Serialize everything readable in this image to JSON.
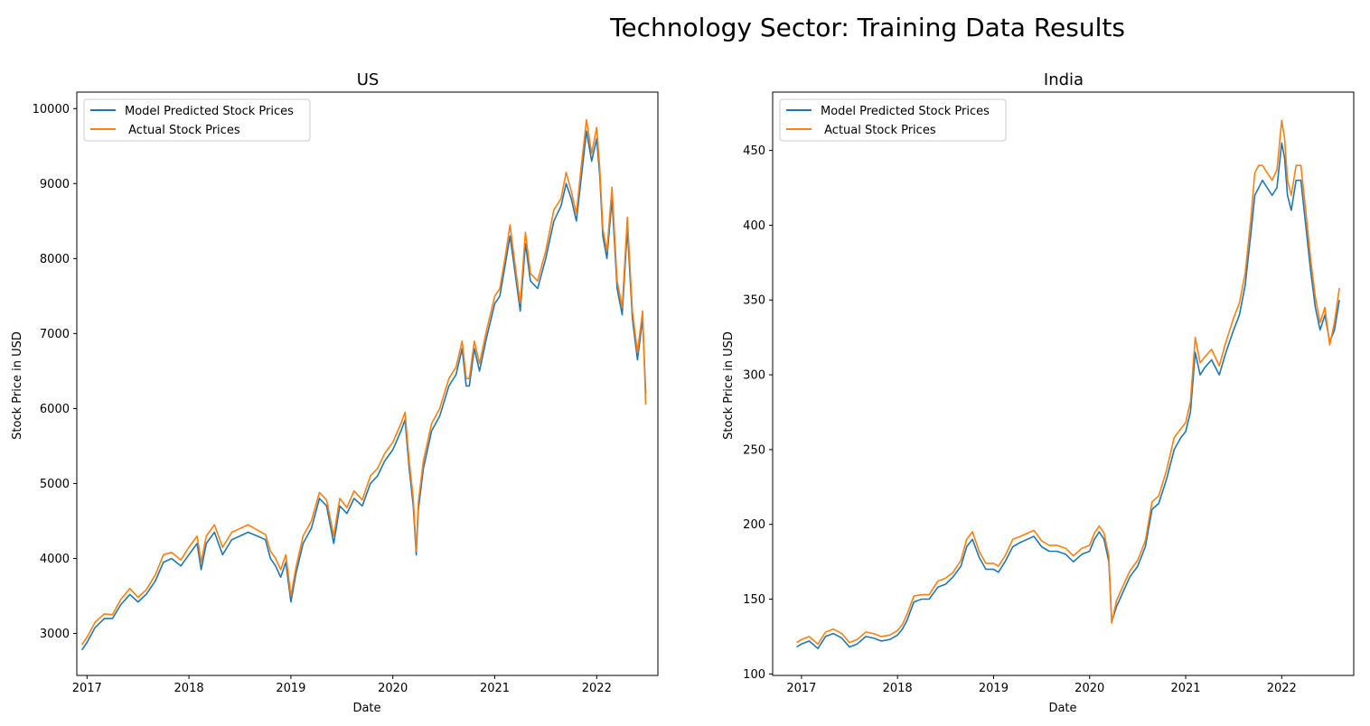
{
  "figure": {
    "suptitle": "Technology Sector: Training Data Results"
  },
  "colors": {
    "predicted": "#1f77b4",
    "actual": "#ff7f0e"
  },
  "chart_data": [
    {
      "type": "line",
      "title": "US",
      "xlabel": "Date",
      "ylabel": "Stock Price in USD",
      "xticks": [
        "2017",
        "2018",
        "2019",
        "2020",
        "2021",
        "2022"
      ],
      "yticks": [
        3000,
        4000,
        5000,
        6000,
        7000,
        8000,
        9000,
        10000
      ],
      "xlim": [
        2016.9,
        2022.6
      ],
      "ylim": [
        2440,
        10220
      ],
      "legend": {
        "position": "upper-left",
        "entries": [
          "Model Predicted Stock Prices",
          " Actual Stock Prices"
        ]
      },
      "series": [
        {
          "name": "Model Predicted Stock Prices",
          "x": [
            2016.95,
            2017.0,
            2017.08,
            2017.17,
            2017.25,
            2017.33,
            2017.42,
            2017.5,
            2017.58,
            2017.67,
            2017.75,
            2017.83,
            2017.92,
            2018.0,
            2018.08,
            2018.12,
            2018.17,
            2018.25,
            2018.33,
            2018.42,
            2018.5,
            2018.58,
            2018.67,
            2018.75,
            2018.8,
            2018.85,
            2018.9,
            2018.95,
            2019.0,
            2019.05,
            2019.12,
            2019.2,
            2019.28,
            2019.35,
            2019.42,
            2019.48,
            2019.55,
            2019.62,
            2019.7,
            2019.78,
            2019.85,
            2019.92,
            2020.0,
            2020.08,
            2020.12,
            2020.16,
            2020.2,
            2020.23,
            2020.25,
            2020.3,
            2020.38,
            2020.46,
            2020.55,
            2020.62,
            2020.68,
            2020.72,
            2020.75,
            2020.8,
            2020.85,
            2020.92,
            2021.0,
            2021.05,
            2021.1,
            2021.15,
            2021.2,
            2021.25,
            2021.3,
            2021.35,
            2021.42,
            2021.5,
            2021.58,
            2021.65,
            2021.7,
            2021.75,
            2021.8,
            2021.85,
            2021.9,
            2021.95,
            2022.0,
            2022.03,
            2022.06,
            2022.1,
            2022.15,
            2022.2,
            2022.25,
            2022.3,
            2022.35,
            2022.4,
            2022.45,
            2022.48
          ],
          "y": [
            2780,
            2880,
            3080,
            3200,
            3200,
            3380,
            3520,
            3420,
            3520,
            3700,
            3950,
            4000,
            3900,
            4050,
            4200,
            3850,
            4200,
            4350,
            4050,
            4250,
            4300,
            4350,
            4300,
            4250,
            4000,
            3900,
            3750,
            3950,
            3420,
            3800,
            4200,
            4400,
            4800,
            4700,
            4200,
            4700,
            4600,
            4800,
            4700,
            5000,
            5100,
            5300,
            5450,
            5700,
            5850,
            5200,
            4700,
            4050,
            4650,
            5200,
            5700,
            5900,
            6300,
            6450,
            6800,
            6300,
            6300,
            6800,
            6500,
            6950,
            7400,
            7500,
            7900,
            8300,
            7800,
            7300,
            8200,
            7700,
            7600,
            8000,
            8500,
            8700,
            9000,
            8800,
            8500,
            9100,
            9700,
            9300,
            9600,
            9100,
            8300,
            8000,
            8800,
            7600,
            7250,
            8400,
            7200,
            6650,
            7200,
            6200
          ]
        },
        {
          "name": " Actual Stock Prices",
          "x": [
            2016.95,
            2017.0,
            2017.08,
            2017.17,
            2017.25,
            2017.33,
            2017.42,
            2017.5,
            2017.58,
            2017.67,
            2017.75,
            2017.83,
            2017.92,
            2018.0,
            2018.08,
            2018.12,
            2018.17,
            2018.25,
            2018.33,
            2018.42,
            2018.5,
            2018.58,
            2018.67,
            2018.75,
            2018.8,
            2018.85,
            2018.9,
            2018.95,
            2019.0,
            2019.05,
            2019.12,
            2019.2,
            2019.28,
            2019.35,
            2019.42,
            2019.48,
            2019.55,
            2019.62,
            2019.7,
            2019.78,
            2019.85,
            2019.92,
            2020.0,
            2020.08,
            2020.12,
            2020.16,
            2020.2,
            2020.23,
            2020.25,
            2020.3,
            2020.38,
            2020.46,
            2020.55,
            2020.62,
            2020.68,
            2020.72,
            2020.75,
            2020.8,
            2020.85,
            2020.92,
            2021.0,
            2021.05,
            2021.1,
            2021.15,
            2021.2,
            2021.25,
            2021.3,
            2021.35,
            2021.42,
            2021.5,
            2021.58,
            2021.65,
            2021.7,
            2021.75,
            2021.8,
            2021.85,
            2021.9,
            2021.95,
            2022.0,
            2022.03,
            2022.06,
            2022.1,
            2022.15,
            2022.2,
            2022.25,
            2022.3,
            2022.35,
            2022.4,
            2022.45,
            2022.48
          ],
          "y": [
            2850,
            2950,
            3150,
            3260,
            3250,
            3450,
            3600,
            3480,
            3580,
            3780,
            4050,
            4080,
            3980,
            4150,
            4300,
            3950,
            4300,
            4450,
            4150,
            4350,
            4400,
            4450,
            4380,
            4320,
            4100,
            4000,
            3850,
            4050,
            3500,
            3880,
            4300,
            4500,
            4880,
            4780,
            4300,
            4800,
            4680,
            4900,
            4780,
            5100,
            5200,
            5400,
            5550,
            5800,
            5950,
            5300,
            4800,
            4100,
            4750,
            5300,
            5800,
            6000,
            6400,
            6550,
            6900,
            6400,
            6400,
            6900,
            6600,
            7050,
            7500,
            7600,
            8000,
            8450,
            7900,
            7400,
            8350,
            7800,
            7700,
            8100,
            8650,
            8800,
            9150,
            8900,
            8600,
            9250,
            9850,
            9400,
            9750,
            9200,
            8400,
            8100,
            8950,
            7700,
            7350,
            8550,
            7300,
            6750,
            7300,
            6050
          ]
        }
      ]
    },
    {
      "type": "line",
      "title": "India",
      "xlabel": "Date",
      "ylabel": "Stock Price in USD",
      "xticks": [
        "2017",
        "2018",
        "2019",
        "2020",
        "2021",
        "2022"
      ],
      "yticks": [
        100,
        150,
        200,
        250,
        300,
        350,
        400,
        450
      ],
      "xlim": [
        2016.7,
        2022.75
      ],
      "ylim": [
        99,
        489
      ],
      "legend": {
        "position": "upper-left",
        "entries": [
          "Model Predicted Stock Prices",
          " Actual Stock Prices"
        ]
      },
      "series": [
        {
          "name": "Model Predicted Stock Prices",
          "x": [
            2016.95,
            2017.0,
            2017.08,
            2017.17,
            2017.25,
            2017.33,
            2017.42,
            2017.5,
            2017.58,
            2017.67,
            2017.75,
            2017.83,
            2017.92,
            2018.0,
            2018.05,
            2018.1,
            2018.17,
            2018.25,
            2018.33,
            2018.42,
            2018.5,
            2018.58,
            2018.66,
            2018.72,
            2018.78,
            2018.85,
            2018.92,
            2019.0,
            2019.05,
            2019.12,
            2019.2,
            2019.28,
            2019.35,
            2019.42,
            2019.5,
            2019.58,
            2019.66,
            2019.75,
            2019.83,
            2019.92,
            2020.0,
            2020.05,
            2020.1,
            2020.15,
            2020.2,
            2020.23,
            2020.28,
            2020.35,
            2020.42,
            2020.5,
            2020.58,
            2020.65,
            2020.72,
            2020.8,
            2020.88,
            2020.95,
            2021.0,
            2021.05,
            2021.1,
            2021.15,
            2021.2,
            2021.27,
            2021.35,
            2021.42,
            2021.5,
            2021.56,
            2021.62,
            2021.68,
            2021.72,
            2021.76,
            2021.8,
            2021.85,
            2021.9,
            2021.95,
            2022.0,
            2022.03,
            2022.06,
            2022.1,
            2022.15,
            2022.2,
            2022.25,
            2022.3,
            2022.35,
            2022.4,
            2022.45,
            2022.5,
            2022.55,
            2022.6
          ],
          "y": [
            118,
            120,
            122,
            117,
            125,
            127,
            124,
            118,
            120,
            125,
            124,
            122,
            123,
            126,
            130,
            136,
            148,
            150,
            150,
            158,
            160,
            165,
            172,
            185,
            190,
            178,
            170,
            170,
            168,
            175,
            185,
            188,
            190,
            192,
            185,
            182,
            182,
            180,
            175,
            180,
            182,
            190,
            195,
            190,
            175,
            135,
            145,
            155,
            165,
            172,
            185,
            210,
            214,
            230,
            250,
            258,
            262,
            275,
            315,
            300,
            305,
            310,
            300,
            315,
            330,
            340,
            360,
            395,
            420,
            425,
            430,
            425,
            420,
            425,
            455,
            445,
            420,
            410,
            430,
            430,
            400,
            370,
            345,
            330,
            340,
            322,
            330,
            350
          ]
        },
        {
          "name": " Actual Stock Prices",
          "x": [
            2016.95,
            2017.0,
            2017.08,
            2017.17,
            2017.25,
            2017.33,
            2017.42,
            2017.5,
            2017.58,
            2017.67,
            2017.75,
            2017.83,
            2017.92,
            2018.0,
            2018.05,
            2018.1,
            2018.17,
            2018.25,
            2018.33,
            2018.42,
            2018.5,
            2018.58,
            2018.66,
            2018.72,
            2018.78,
            2018.85,
            2018.92,
            2019.0,
            2019.05,
            2019.12,
            2019.2,
            2019.28,
            2019.35,
            2019.42,
            2019.5,
            2019.58,
            2019.66,
            2019.75,
            2019.83,
            2019.92,
            2020.0,
            2020.05,
            2020.1,
            2020.15,
            2020.2,
            2020.23,
            2020.28,
            2020.35,
            2020.42,
            2020.5,
            2020.58,
            2020.65,
            2020.72,
            2020.8,
            2020.88,
            2020.95,
            2021.0,
            2021.05,
            2021.1,
            2021.15,
            2021.2,
            2021.27,
            2021.35,
            2021.42,
            2021.5,
            2021.56,
            2021.62,
            2021.68,
            2021.72,
            2021.76,
            2021.8,
            2021.85,
            2021.9,
            2021.95,
            2022.0,
            2022.03,
            2022.06,
            2022.1,
            2022.15,
            2022.2,
            2022.25,
            2022.3,
            2022.35,
            2022.4,
            2022.45,
            2022.5,
            2022.55,
            2022.6
          ],
          "y": [
            121,
            123,
            125,
            120,
            128,
            130,
            127,
            121,
            123,
            128,
            127,
            125,
            126,
            129,
            133,
            140,
            152,
            153,
            153,
            162,
            164,
            168,
            176,
            190,
            195,
            182,
            174,
            174,
            172,
            179,
            190,
            192,
            194,
            196,
            189,
            186,
            186,
            184,
            179,
            184,
            186,
            194,
            199,
            194,
            179,
            134,
            149,
            159,
            169,
            176,
            189,
            215,
            219,
            236,
            258,
            264,
            268,
            282,
            325,
            308,
            312,
            317,
            306,
            322,
            338,
            348,
            368,
            405,
            435,
            440,
            440,
            435,
            430,
            437,
            470,
            458,
            430,
            420,
            440,
            440,
            410,
            378,
            352,
            335,
            345,
            320,
            335,
            358
          ]
        }
      ]
    }
  ]
}
